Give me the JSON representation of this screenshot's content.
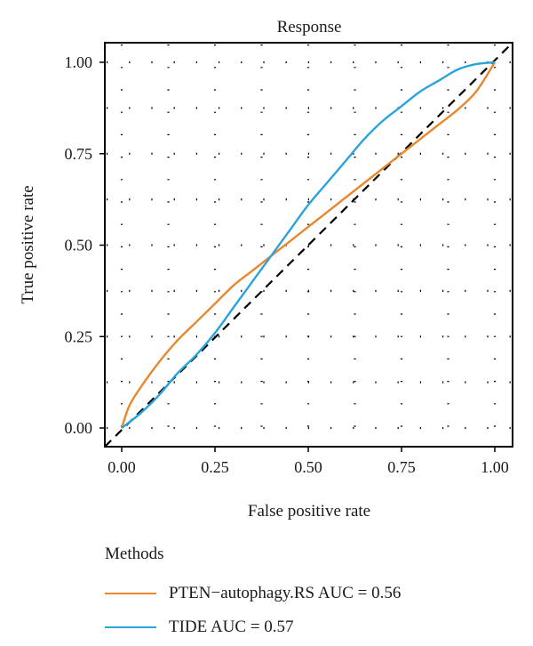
{
  "chart_data": {
    "type": "line",
    "title": "Response",
    "xlabel": "False positive rate",
    "ylabel": "True positive rate",
    "xlim": [
      0,
      1
    ],
    "ylim": [
      0,
      1
    ],
    "xticks": [
      "0.00",
      "0.25",
      "0.50",
      "0.75",
      "1.00"
    ],
    "yticks": [
      "0.00",
      "0.25",
      "0.50",
      "0.75",
      "1.00"
    ],
    "grid": "dotted",
    "reference_line": "diagonal, dashed",
    "legend": {
      "title": "Methods",
      "placement": "bottom"
    },
    "series": [
      {
        "name": "PTEN−autophagy.RS AUC = 0.56",
        "color": "#E8872E",
        "x": [
          0.0,
          0.02,
          0.05,
          0.1,
          0.15,
          0.2,
          0.25,
          0.3,
          0.35,
          0.4,
          0.45,
          0.5,
          0.55,
          0.6,
          0.65,
          0.7,
          0.75,
          0.8,
          0.85,
          0.9,
          0.95,
          1.0
        ],
        "y": [
          0.0,
          0.06,
          0.11,
          0.18,
          0.24,
          0.29,
          0.34,
          0.39,
          0.43,
          0.47,
          0.51,
          0.55,
          0.59,
          0.63,
          0.67,
          0.71,
          0.75,
          0.79,
          0.83,
          0.87,
          0.92,
          1.0
        ]
      },
      {
        "name": "TIDE AUC = 0.57",
        "color": "#2AA3DC",
        "x": [
          0.0,
          0.05,
          0.1,
          0.15,
          0.2,
          0.25,
          0.3,
          0.35,
          0.4,
          0.45,
          0.5,
          0.55,
          0.6,
          0.65,
          0.7,
          0.75,
          0.8,
          0.85,
          0.9,
          0.95,
          1.0
        ],
        "y": [
          0.0,
          0.04,
          0.09,
          0.15,
          0.2,
          0.26,
          0.33,
          0.4,
          0.47,
          0.54,
          0.61,
          0.67,
          0.73,
          0.79,
          0.84,
          0.88,
          0.92,
          0.95,
          0.98,
          0.995,
          1.0
        ]
      }
    ]
  }
}
